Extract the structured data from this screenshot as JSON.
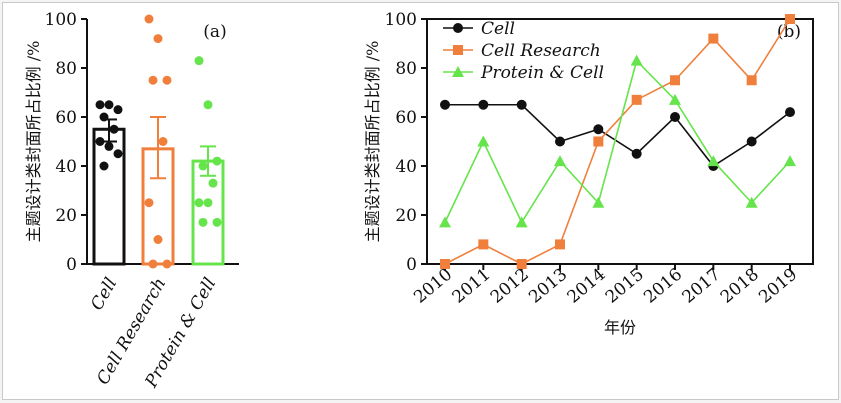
{
  "chart_data": [
    {
      "type": "bar",
      "panel_label": "(a)",
      "ylabel": "主题设计类封面所占比例 /%",
      "ylim": [
        0,
        100
      ],
      "yticks": [
        0,
        20,
        40,
        60,
        80,
        100
      ],
      "categories": [
        "Cell",
        "Cell Research",
        "Protein & Cell"
      ],
      "values": [
        55,
        47,
        42
      ],
      "error": [
        [
          50,
          59
        ],
        [
          35,
          60
        ],
        [
          36,
          48
        ]
      ],
      "colors": [
        "#111111",
        "#f07f3c",
        "#66e44c"
      ],
      "points": [
        [
          65,
          65,
          63,
          60,
          55,
          50,
          48,
          45,
          40
        ],
        [
          100,
          92,
          75,
          75,
          50,
          25,
          10,
          0,
          0
        ],
        [
          83,
          65,
          42,
          40,
          33,
          25,
          25,
          17,
          17
        ]
      ]
    },
    {
      "type": "line",
      "panel_label": "(b)",
      "ylabel": "主题设计类封面所占比例 /%",
      "xlabel": "年份",
      "ylim": [
        0,
        100
      ],
      "yticks": [
        0,
        20,
        40,
        60,
        80,
        100
      ],
      "x": [
        "2010",
        "2011",
        "2012",
        "2013",
        "2014",
        "2015",
        "2016",
        "2017",
        "2018",
        "2019"
      ],
      "legend_position": "top-left",
      "series": [
        {
          "name": "Cell",
          "color": "#111111",
          "marker": "circle",
          "values": [
            65,
            65,
            65,
            50,
            55,
            45,
            60,
            40,
            50,
            62
          ]
        },
        {
          "name": "Cell Research",
          "color": "#f07f3c",
          "marker": "square",
          "values": [
            0,
            8,
            0,
            8,
            50,
            67,
            75,
            92,
            75,
            100
          ]
        },
        {
          "name": "Protein & Cell",
          "color": "#66e44c",
          "marker": "triangle",
          "values": [
            17,
            50,
            17,
            42,
            25,
            83,
            67,
            42,
            25,
            42
          ]
        }
      ]
    }
  ]
}
